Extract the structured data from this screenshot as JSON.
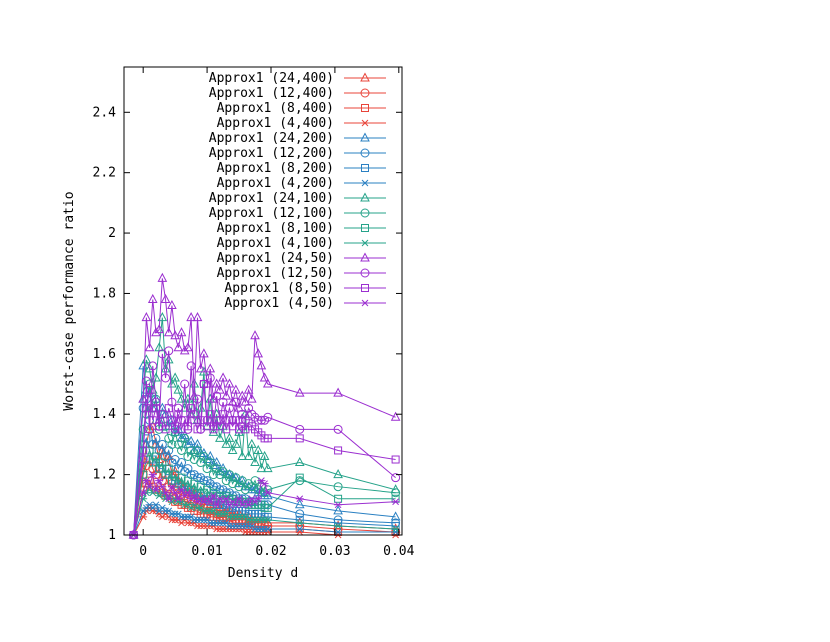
{
  "chart_data": {
    "type": "line",
    "xlabel": "Density d",
    "ylabel": "Worst-case performance ratio",
    "xlim": [
      -0.003,
      0.0405
    ],
    "ylim": [
      1,
      2.55
    ],
    "xticks": [
      0,
      0.01,
      0.02,
      0.03,
      0.04
    ],
    "xtick_labels": [
      "0",
      "0.01",
      "0.02",
      "0.03",
      "0.04"
    ],
    "yticks": [
      1,
      1.2,
      1.4,
      1.6,
      1.8,
      2,
      2.2,
      2.4
    ],
    "ytick_labels": [
      "1",
      "1.2",
      "1.4",
      "1.6",
      "1.8",
      "2",
      "2.2",
      "2.4"
    ],
    "grid": false,
    "legend_position": "top-right",
    "x": [
      -0.0015,
      0,
      0.0005,
      0.001,
      0.0015,
      0.002,
      0.0025,
      0.003,
      0.0035,
      0.004,
      0.0045,
      0.005,
      0.0055,
      0.006,
      0.0065,
      0.007,
      0.0075,
      0.008,
      0.0085,
      0.009,
      0.0095,
      0.01,
      0.0105,
      0.011,
      0.0115,
      0.012,
      0.0125,
      0.013,
      0.0135,
      0.014,
      0.0145,
      0.015,
      0.0155,
      0.016,
      0.0165,
      0.017,
      0.0175,
      0.018,
      0.0185,
      0.019,
      0.0195,
      0.0245,
      0.0305,
      0.0395
    ],
    "series": [
      {
        "name": "Approx1 (24,400)",
        "color": "#e8443a",
        "marker": "triangle",
        "values": [
          1.0,
          1.22,
          1.3,
          1.35,
          1.36,
          1.3,
          1.25,
          1.28,
          1.24,
          1.26,
          1.2,
          1.21,
          1.18,
          1.17,
          1.16,
          1.14,
          1.15,
          1.14,
          1.12,
          1.13,
          1.11,
          1.12,
          1.1,
          1.11,
          1.1,
          1.09,
          1.09,
          1.08,
          1.08,
          1.07,
          1.07,
          1.07,
          1.06,
          1.06,
          1.06,
          1.05,
          1.05,
          1.05,
          1.05,
          1.05,
          1.04,
          1.04,
          1.03,
          1.02
        ]
      },
      {
        "name": "Approx1 (12,400)",
        "color": "#e8443a",
        "marker": "circle",
        "values": [
          1.0,
          1.2,
          1.23,
          1.25,
          1.22,
          1.2,
          1.22,
          1.18,
          1.2,
          1.16,
          1.17,
          1.15,
          1.14,
          1.13,
          1.13,
          1.12,
          1.12,
          1.11,
          1.1,
          1.1,
          1.09,
          1.09,
          1.08,
          1.08,
          1.07,
          1.07,
          1.07,
          1.06,
          1.06,
          1.06,
          1.05,
          1.05,
          1.05,
          1.05,
          1.04,
          1.04,
          1.04,
          1.04,
          1.04,
          1.03,
          1.03,
          1.03,
          1.02,
          1.01
        ]
      },
      {
        "name": "Approx1 (8,400)",
        "color": "#e8443a",
        "marker": "square",
        "values": [
          1.0,
          1.15,
          1.17,
          1.18,
          1.16,
          1.15,
          1.15,
          1.14,
          1.13,
          1.13,
          1.12,
          1.11,
          1.11,
          1.1,
          1.1,
          1.09,
          1.09,
          1.08,
          1.08,
          1.07,
          1.07,
          1.07,
          1.06,
          1.06,
          1.06,
          1.05,
          1.05,
          1.05,
          1.05,
          1.04,
          1.04,
          1.04,
          1.04,
          1.04,
          1.03,
          1.03,
          1.03,
          1.03,
          1.03,
          1.03,
          1.02,
          1.02,
          1.01,
          1.01
        ]
      },
      {
        "name": "Approx1 (4,400)",
        "color": "#e8443a",
        "marker": "star",
        "values": [
          1.0,
          1.06,
          1.08,
          1.09,
          1.08,
          1.08,
          1.07,
          1.06,
          1.07,
          1.06,
          1.05,
          1.05,
          1.05,
          1.04,
          1.05,
          1.04,
          1.04,
          1.04,
          1.03,
          1.03,
          1.03,
          1.03,
          1.03,
          1.03,
          1.02,
          1.02,
          1.02,
          1.02,
          1.02,
          1.02,
          1.02,
          1.02,
          1.02,
          1.01,
          1.01,
          1.01,
          1.01,
          1.01,
          1.01,
          1.01,
          1.01,
          1.01,
          1.0,
          1.0
        ]
      },
      {
        "name": "Approx1 (24,200)",
        "color": "#2a80c2",
        "marker": "triangle",
        "values": [
          1.0,
          1.56,
          1.48,
          1.47,
          1.42,
          1.45,
          1.38,
          1.42,
          1.4,
          1.36,
          1.38,
          1.34,
          1.35,
          1.32,
          1.33,
          1.3,
          1.31,
          1.28,
          1.3,
          1.27,
          1.27,
          1.25,
          1.26,
          1.23,
          1.24,
          1.21,
          1.22,
          1.2,
          1.2,
          1.19,
          1.19,
          1.17,
          1.18,
          1.16,
          1.16,
          1.15,
          1.15,
          1.14,
          1.14,
          1.13,
          1.13,
          1.1,
          1.08,
          1.06
        ]
      },
      {
        "name": "Approx1 (12,200)",
        "color": "#2a80c2",
        "marker": "circle",
        "values": [
          1.0,
          1.42,
          1.45,
          1.38,
          1.3,
          1.32,
          1.28,
          1.3,
          1.26,
          1.28,
          1.24,
          1.25,
          1.22,
          1.24,
          1.21,
          1.22,
          1.2,
          1.2,
          1.19,
          1.19,
          1.18,
          1.18,
          1.17,
          1.16,
          1.16,
          1.15,
          1.15,
          1.14,
          1.14,
          1.13,
          1.13,
          1.12,
          1.12,
          1.12,
          1.11,
          1.11,
          1.11,
          1.1,
          1.1,
          1.1,
          1.1,
          1.07,
          1.05,
          1.04
        ]
      },
      {
        "name": "Approx1 (8,200)",
        "color": "#2a80c2",
        "marker": "square",
        "values": [
          1.0,
          1.3,
          1.32,
          1.28,
          1.25,
          1.24,
          1.22,
          1.22,
          1.2,
          1.2,
          1.18,
          1.18,
          1.17,
          1.16,
          1.16,
          1.15,
          1.15,
          1.14,
          1.13,
          1.13,
          1.12,
          1.12,
          1.11,
          1.11,
          1.1,
          1.1,
          1.1,
          1.09,
          1.09,
          1.09,
          1.08,
          1.08,
          1.08,
          1.08,
          1.07,
          1.07,
          1.07,
          1.07,
          1.07,
          1.06,
          1.06,
          1.05,
          1.04,
          1.03
        ]
      },
      {
        "name": "Approx1 (4,200)",
        "color": "#2a80c2",
        "marker": "star",
        "values": [
          1.0,
          1.08,
          1.09,
          1.1,
          1.09,
          1.1,
          1.08,
          1.09,
          1.08,
          1.08,
          1.07,
          1.07,
          1.07,
          1.06,
          1.06,
          1.06,
          1.06,
          1.05,
          1.05,
          1.05,
          1.05,
          1.05,
          1.04,
          1.04,
          1.04,
          1.04,
          1.04,
          1.04,
          1.03,
          1.03,
          1.03,
          1.03,
          1.03,
          1.03,
          1.03,
          1.03,
          1.02,
          1.02,
          1.02,
          1.02,
          1.02,
          1.02,
          1.01,
          1.01
        ]
      },
      {
        "name": "Approx1 (24,100)",
        "color": "#26a38a",
        "marker": "triangle",
        "values": [
          1.0,
          1.45,
          1.58,
          1.55,
          1.48,
          1.52,
          1.62,
          1.72,
          1.55,
          1.58,
          1.5,
          1.52,
          1.48,
          1.45,
          1.42,
          1.45,
          1.4,
          1.5,
          1.38,
          1.42,
          1.54,
          1.36,
          1.45,
          1.34,
          1.4,
          1.32,
          1.36,
          1.3,
          1.32,
          1.28,
          1.3,
          1.34,
          1.26,
          1.4,
          1.26,
          1.3,
          1.24,
          1.28,
          1.22,
          1.26,
          1.22,
          1.24,
          1.2,
          1.15
        ]
      },
      {
        "name": "Approx1 (12,100)",
        "color": "#26a38a",
        "marker": "circle",
        "values": [
          1.0,
          1.35,
          1.4,
          1.5,
          1.42,
          1.45,
          1.35,
          1.4,
          1.36,
          1.32,
          1.3,
          1.34,
          1.3,
          1.28,
          1.32,
          1.26,
          1.28,
          1.25,
          1.28,
          1.24,
          1.26,
          1.22,
          1.24,
          1.2,
          1.22,
          1.2,
          1.21,
          1.18,
          1.2,
          1.17,
          1.19,
          1.16,
          1.18,
          1.15,
          1.17,
          1.16,
          1.18,
          1.15,
          1.16,
          1.14,
          1.15,
          1.18,
          1.16,
          1.14
        ]
      },
      {
        "name": "Approx1 (8,100)",
        "color": "#26a38a",
        "marker": "square",
        "values": [
          1.0,
          1.2,
          1.25,
          1.28,
          1.24,
          1.26,
          1.22,
          1.24,
          1.2,
          1.22,
          1.18,
          1.2,
          1.17,
          1.19,
          1.16,
          1.18,
          1.15,
          1.17,
          1.14,
          1.16,
          1.14,
          1.15,
          1.13,
          1.14,
          1.13,
          1.13,
          1.12,
          1.13,
          1.12,
          1.12,
          1.11,
          1.11,
          1.11,
          1.11,
          1.1,
          1.1,
          1.1,
          1.1,
          1.1,
          1.09,
          1.09,
          1.19,
          1.12,
          1.12
        ]
      },
      {
        "name": "Approx1 (4,100)",
        "color": "#26a38a",
        "marker": "star",
        "values": [
          1.0,
          1.12,
          1.14,
          1.16,
          1.14,
          1.15,
          1.13,
          1.14,
          1.12,
          1.13,
          1.11,
          1.12,
          1.11,
          1.11,
          1.1,
          1.1,
          1.09,
          1.1,
          1.09,
          1.09,
          1.08,
          1.08,
          1.08,
          1.08,
          1.07,
          1.07,
          1.07,
          1.07,
          1.06,
          1.06,
          1.06,
          1.06,
          1.06,
          1.06,
          1.05,
          1.05,
          1.05,
          1.05,
          1.05,
          1.05,
          1.05,
          1.04,
          1.03,
          1.02
        ]
      },
      {
        "name": "Approx1 (24,50)",
        "color": "#9b2fd0",
        "marker": "triangle",
        "values": [
          1.0,
          1.45,
          1.72,
          1.62,
          1.78,
          1.67,
          1.68,
          1.85,
          1.78,
          1.67,
          1.76,
          1.66,
          1.62,
          1.67,
          1.61,
          1.62,
          1.72,
          1.46,
          1.72,
          1.55,
          1.6,
          1.5,
          1.55,
          1.45,
          1.5,
          1.48,
          1.52,
          1.46,
          1.5,
          1.44,
          1.48,
          1.42,
          1.46,
          1.44,
          1.48,
          1.45,
          1.66,
          1.6,
          1.56,
          1.52,
          1.5,
          1.47,
          1.47,
          1.39
        ]
      },
      {
        "name": "Approx1 (12,50)",
        "color": "#9b2fd0",
        "marker": "circle",
        "values": [
          1.0,
          1.25,
          1.51,
          1.35,
          1.56,
          1.44,
          1.36,
          1.6,
          1.52,
          1.61,
          1.44,
          1.35,
          1.42,
          1.38,
          1.5,
          1.35,
          1.56,
          1.4,
          1.45,
          1.35,
          1.5,
          1.38,
          1.52,
          1.36,
          1.46,
          1.38,
          1.44,
          1.38,
          1.42,
          1.38,
          1.44,
          1.38,
          1.4,
          1.38,
          1.42,
          1.4,
          1.39,
          1.38,
          1.38,
          1.38,
          1.39,
          1.35,
          1.35,
          1.19
        ]
      },
      {
        "name": "Approx1 (8,50)",
        "color": "#9b2fd0",
        "marker": "square",
        "values": [
          1.0,
          1.28,
          1.42,
          1.48,
          1.38,
          1.42,
          1.36,
          1.4,
          1.35,
          1.42,
          1.38,
          1.36,
          1.4,
          1.35,
          1.38,
          1.36,
          1.42,
          1.38,
          1.35,
          1.38,
          1.5,
          1.36,
          1.4,
          1.35,
          1.38,
          1.36,
          1.4,
          1.35,
          1.38,
          1.36,
          1.38,
          1.35,
          1.36,
          1.35,
          1.37,
          1.36,
          1.35,
          1.34,
          1.33,
          1.32,
          1.32,
          1.32,
          1.28,
          1.25
        ]
      },
      {
        "name": "Approx1 (4,50)",
        "color": "#9b2fd0",
        "marker": "star",
        "values": [
          1.0,
          1.14,
          1.18,
          1.16,
          1.2,
          1.15,
          1.18,
          1.16,
          1.14,
          1.12,
          1.16,
          1.14,
          1.12,
          1.15,
          1.13,
          1.14,
          1.12,
          1.13,
          1.11,
          1.12,
          1.11,
          1.12,
          1.11,
          1.13,
          1.1,
          1.12,
          1.11,
          1.12,
          1.1,
          1.11,
          1.1,
          1.12,
          1.1,
          1.11,
          1.1,
          1.12,
          1.11,
          1.12,
          1.18,
          1.17,
          1.14,
          1.12,
          1.1,
          1.11
        ]
      }
    ]
  }
}
